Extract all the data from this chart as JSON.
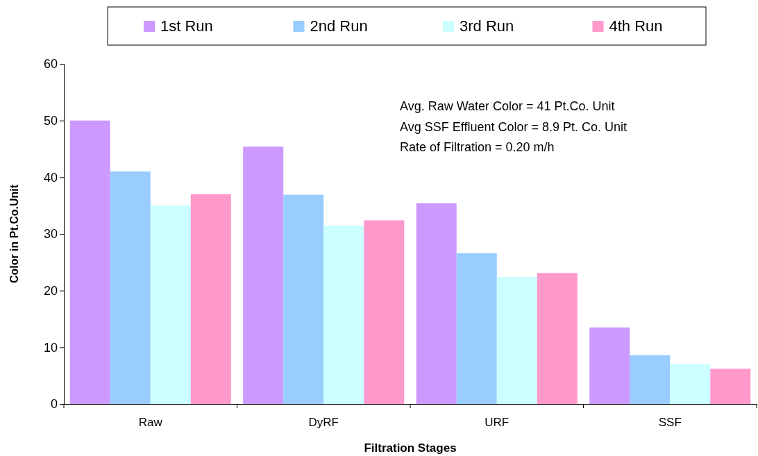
{
  "chart_data": {
    "type": "bar",
    "xlabel": "Filtration Stages",
    "ylabel": "Color in Pt.Co.Unit",
    "categories": [
      "Raw",
      "DyRF",
      "URF",
      "SSF"
    ],
    "series": [
      {
        "name": "1st Run",
        "color": "#cc99ff",
        "values": [
          50,
          45.4,
          35.4,
          13.5
        ]
      },
      {
        "name": "2nd Run",
        "color": "#99ccff",
        "values": [
          41,
          36.9,
          26.6,
          8.6
        ]
      },
      {
        "name": "3rd Run",
        "color": "#ccffff",
        "values": [
          35,
          31.5,
          22.4,
          7
        ]
      },
      {
        "name": "4th Run",
        "color": "#ff99cc",
        "values": [
          37,
          32.4,
          23.1,
          6.2
        ]
      }
    ],
    "ylim": [
      0,
      60
    ],
    "yticks": [
      0,
      10,
      20,
      30,
      40,
      50,
      60
    ],
    "grid": false,
    "legend": "top",
    "annotations": [
      "Avg. Raw Water  Color = 41 Pt.Co. Unit",
      "Avg SSF Effluent Color = 8.9 Pt. Co. Unit",
      "Rate of Filtration = 0.20 m/h"
    ]
  }
}
